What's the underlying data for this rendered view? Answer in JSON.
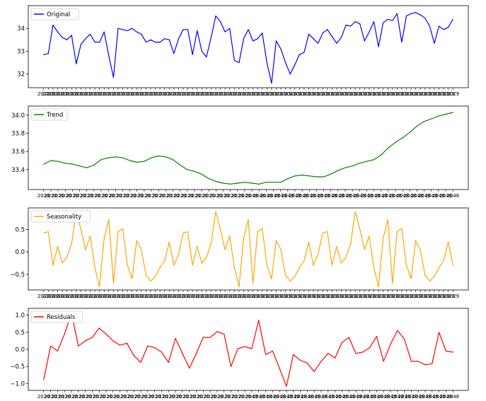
{
  "chart_data": [
    {
      "type": "line",
      "legend": "Original",
      "legend_position": "top-left",
      "color": "#0000ff",
      "ylim": [
        31.4,
        35.0
      ],
      "yticks": [
        {
          "value": 32,
          "label": "32"
        },
        {
          "value": 33,
          "label": "33"
        },
        {
          "value": 34,
          "label": "34"
        }
      ],
      "xtick_labels": [
        "2020",
        "2029"
      ],
      "values": [
        32.85,
        32.9,
        34.15,
        33.85,
        33.6,
        33.5,
        33.7,
        32.45,
        33.3,
        33.55,
        33.75,
        33.4,
        33.4,
        33.85,
        32.8,
        31.85,
        34.0,
        33.95,
        33.9,
        34.0,
        33.85,
        33.75,
        33.4,
        33.5,
        33.4,
        33.4,
        33.55,
        33.5,
        32.9,
        33.55,
        33.95,
        33.95,
        32.85,
        33.9,
        33.0,
        32.75,
        33.6,
        34.55,
        34.3,
        33.85,
        34.0,
        32.6,
        32.5,
        33.55,
        33.95,
        33.45,
        33.55,
        33.8,
        32.5,
        31.6,
        33.45,
        33.1,
        32.5,
        32.0,
        32.4,
        32.85,
        32.95,
        33.75,
        33.55,
        33.35,
        33.8,
        33.95,
        33.65,
        33.35,
        33.6,
        34.15,
        34.1,
        34.3,
        34.2,
        33.45,
        33.85,
        34.3,
        33.2,
        34.25,
        34.4,
        34.35,
        34.65,
        33.4,
        34.55,
        34.65,
        34.7,
        34.6,
        34.45,
        34.1,
        33.35,
        34.1,
        33.95,
        34.05,
        34.4
      ]
    },
    {
      "type": "line",
      "legend": "Trend",
      "legend_position": "top-left",
      "color": "#008000",
      "ylim": [
        33.18,
        34.1
      ],
      "yticks": [
        {
          "value": 33.4,
          "label": "33.4"
        },
        {
          "value": 33.6,
          "label": "33.6"
        },
        {
          "value": 33.8,
          "label": "33.8"
        },
        {
          "value": 34.0,
          "label": "34.0"
        }
      ],
      "xtick_labels": [
        "2020",
        "2048"
      ],
      "values": [
        33.46,
        33.5,
        33.49,
        33.47,
        33.46,
        33.44,
        33.42,
        33.45,
        33.51,
        33.53,
        33.54,
        33.53,
        33.5,
        33.48,
        33.49,
        33.53,
        33.55,
        33.54,
        33.51,
        33.45,
        33.4,
        33.38,
        33.35,
        33.3,
        33.27,
        33.25,
        33.24,
        33.25,
        33.26,
        33.25,
        33.24,
        33.26,
        33.26,
        33.26,
        33.3,
        33.33,
        33.34,
        33.33,
        33.32,
        33.32,
        33.35,
        33.39,
        33.42,
        33.44,
        33.47,
        33.49,
        33.51,
        33.56,
        33.64,
        33.7,
        33.75,
        33.81,
        33.88,
        33.93,
        33.96,
        33.99,
        34.01,
        34.03
      ]
    },
    {
      "type": "line",
      "legend": "Seasonality",
      "legend_position": "top-left",
      "color": "#ffa500",
      "ylim": [
        -0.85,
        0.98
      ],
      "yticks": [
        {
          "value": -0.5,
          "label": "−0.5"
        },
        {
          "value": 0.0,
          "label": "0.0"
        },
        {
          "value": 0.5,
          "label": "0.5"
        }
      ],
      "xtick_labels": [
        "2020",
        "2029"
      ],
      "values": [
        0.42,
        0.45,
        -0.3,
        0.12,
        -0.25,
        -0.12,
        0.18,
        0.9,
        0.5,
        0.05,
        0.35,
        -0.35,
        -0.78,
        0.3,
        0.72,
        -0.7,
        0.45,
        0.52,
        -0.3,
        -0.6,
        0.25,
        0.05,
        -0.52,
        -0.65,
        -0.55,
        -0.35,
        -0.2,
        0.22,
        -0.3,
        -0.05,
        0.42,
        0.45,
        -0.3,
        0.12,
        -0.25,
        -0.12,
        0.18,
        0.9,
        0.5,
        0.05,
        0.35,
        -0.35,
        -0.78,
        0.3,
        0.72,
        -0.7,
        0.45,
        0.52,
        -0.3,
        -0.6,
        0.25,
        0.05,
        -0.52,
        -0.65,
        -0.55,
        -0.35,
        -0.2,
        0.22,
        -0.3,
        -0.05,
        0.42,
        0.45,
        -0.3,
        0.12,
        -0.25,
        -0.12,
        0.18,
        0.9,
        0.5,
        0.05,
        0.35,
        -0.35,
        -0.78,
        0.3,
        0.72,
        -0.7,
        0.45,
        0.52,
        -0.3,
        -0.6,
        0.25,
        0.05,
        -0.52,
        -0.65,
        -0.55,
        -0.35,
        -0.2,
        0.22,
        -0.3
      ]
    },
    {
      "type": "line",
      "legend": "Residuals",
      "legend_position": "top-left",
      "color": "#ff0000",
      "ylim": [
        -1.2,
        1.2
      ],
      "yticks": [
        {
          "value": -1.0,
          "label": "−1.0"
        },
        {
          "value": -0.5,
          "label": "−0.5"
        },
        {
          "value": 0.0,
          "label": "0.0"
        },
        {
          "value": 0.5,
          "label": "0.5"
        },
        {
          "value": 1.0,
          "label": "1.0"
        }
      ],
      "xtick_labels": [
        "2020",
        "2048"
      ],
      "values": [
        -0.88,
        0.1,
        -0.05,
        0.45,
        1.05,
        0.1,
        0.25,
        0.35,
        0.62,
        0.45,
        0.25,
        0.12,
        0.18,
        -0.18,
        -0.38,
        0.1,
        0.05,
        -0.08,
        -0.38,
        0.32,
        -0.12,
        -0.55,
        -0.12,
        0.35,
        0.35,
        0.52,
        0.45,
        -0.5,
        0.02,
        0.08,
        0.02,
        0.85,
        -0.15,
        -0.05,
        -0.55,
        -1.08,
        -0.15,
        -0.32,
        -0.4,
        -0.65,
        -0.35,
        -0.12,
        -0.25,
        0.2,
        0.35,
        -0.12,
        -0.08,
        0.05,
        0.38,
        -0.35,
        0.15,
        0.55,
        0.3,
        -0.35,
        -0.35,
        -0.45,
        -0.42,
        0.5,
        -0.05,
        -0.08
      ]
    }
  ]
}
